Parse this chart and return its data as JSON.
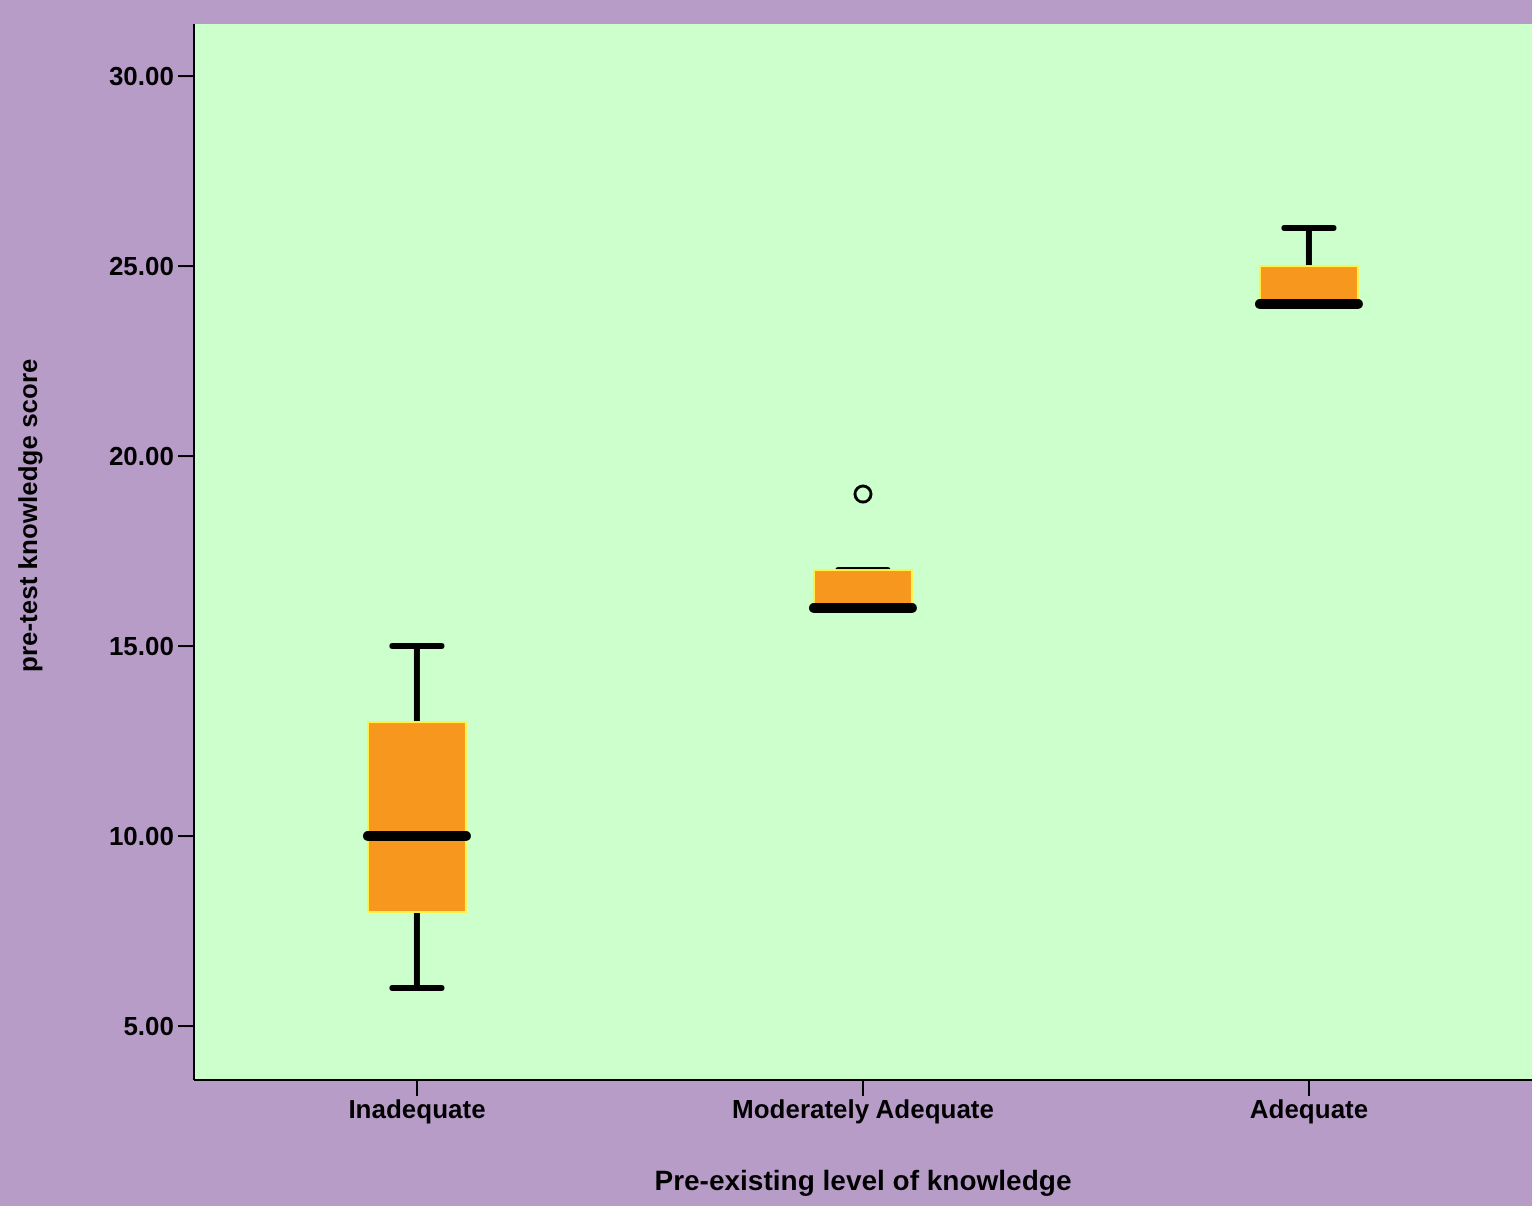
{
  "chart_data": {
    "type": "box",
    "xlabel": "Pre-existing level of knowledge",
    "ylabel": "pre-test knowledge score",
    "categories": [
      "Inadequate",
      "Moderately Adequate",
      "Adequate"
    ],
    "boxes": [
      {
        "low": 6,
        "q1": 8,
        "median": 10,
        "q3": 13,
        "high": 15
      },
      {
        "low": 16,
        "q1": 16,
        "median": 16,
        "q3": 17,
        "high": 17,
        "outliers": [
          19
        ]
      },
      {
        "low": 24,
        "q1": 24,
        "median": 24,
        "q3": 25,
        "high": 26
      }
    ],
    "color": "#f7971e",
    "ylim": [
      3.58,
      31.37
    ],
    "yticks": [
      {
        "value": 5,
        "label": "5.00"
      },
      {
        "value": 10,
        "label": "10.00"
      },
      {
        "value": 15,
        "label": "15.00"
      },
      {
        "value": 20,
        "label": "20.00"
      },
      {
        "value": 25,
        "label": "25.00"
      },
      {
        "value": 30,
        "label": "30.00"
      }
    ],
    "grid": false,
    "legend": false
  }
}
